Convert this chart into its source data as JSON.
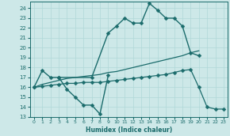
{
  "xlabel": "Humidex (Indice chaleur)",
  "xlim": [
    -0.5,
    23.5
  ],
  "ylim": [
    13,
    24.7
  ],
  "yticks": [
    13,
    14,
    15,
    16,
    17,
    18,
    19,
    20,
    21,
    22,
    23,
    24
  ],
  "xticks": [
    0,
    1,
    2,
    3,
    4,
    5,
    6,
    7,
    8,
    9,
    10,
    11,
    12,
    13,
    14,
    15,
    16,
    17,
    18,
    19,
    20,
    21,
    22,
    23
  ],
  "background_color": "#cde8e8",
  "grid_color": "#b0d8d8",
  "line_color": "#1a6b6b",
  "series": [
    {
      "x": [
        0,
        1,
        2,
        3,
        7,
        9,
        10,
        11,
        12,
        13,
        14,
        15,
        16,
        17,
        18,
        19,
        20
      ],
      "y": [
        16.0,
        17.7,
        17.0,
        17.0,
        17.0,
        21.5,
        22.2,
        23.0,
        22.5,
        22.5,
        24.5,
        23.8,
        23.0,
        23.0,
        22.2,
        19.5,
        19.2
      ],
      "marker": "D",
      "markersize": 2.5,
      "linewidth": 1.0
    },
    {
      "x": [
        3,
        4,
        5,
        6,
        7,
        8,
        9
      ],
      "y": [
        17.0,
        15.8,
        15.0,
        14.2,
        14.2,
        13.3,
        17.2
      ],
      "marker": "D",
      "markersize": 2.5,
      "linewidth": 1.0
    },
    {
      "x": [
        0,
        1,
        2,
        3,
        4,
        5,
        6,
        7,
        8,
        9,
        10,
        11,
        12,
        13,
        14,
        15,
        16,
        17,
        18,
        19,
        20
      ],
      "y": [
        16.0,
        16.3,
        16.5,
        16.7,
        16.9,
        17.0,
        17.1,
        17.2,
        17.3,
        17.5,
        17.6,
        17.8,
        18.0,
        18.2,
        18.4,
        18.6,
        18.8,
        19.0,
        19.2,
        19.5,
        19.7
      ],
      "marker": null,
      "markersize": 0,
      "linewidth": 0.9
    },
    {
      "x": [
        0,
        1,
        2,
        3,
        4,
        5,
        6,
        7,
        8,
        9,
        10,
        11,
        12,
        13,
        14,
        15,
        16,
        17,
        18,
        19,
        20,
        21,
        22,
        23
      ],
      "y": [
        16.0,
        16.1,
        16.2,
        16.3,
        16.4,
        16.4,
        16.5,
        16.5,
        16.5,
        16.6,
        16.7,
        16.8,
        16.9,
        17.0,
        17.1,
        17.2,
        17.3,
        17.5,
        17.7,
        17.8,
        16.0,
        14.0,
        13.8,
        13.8
      ],
      "marker": "D",
      "markersize": 2.5,
      "linewidth": 0.9
    }
  ]
}
